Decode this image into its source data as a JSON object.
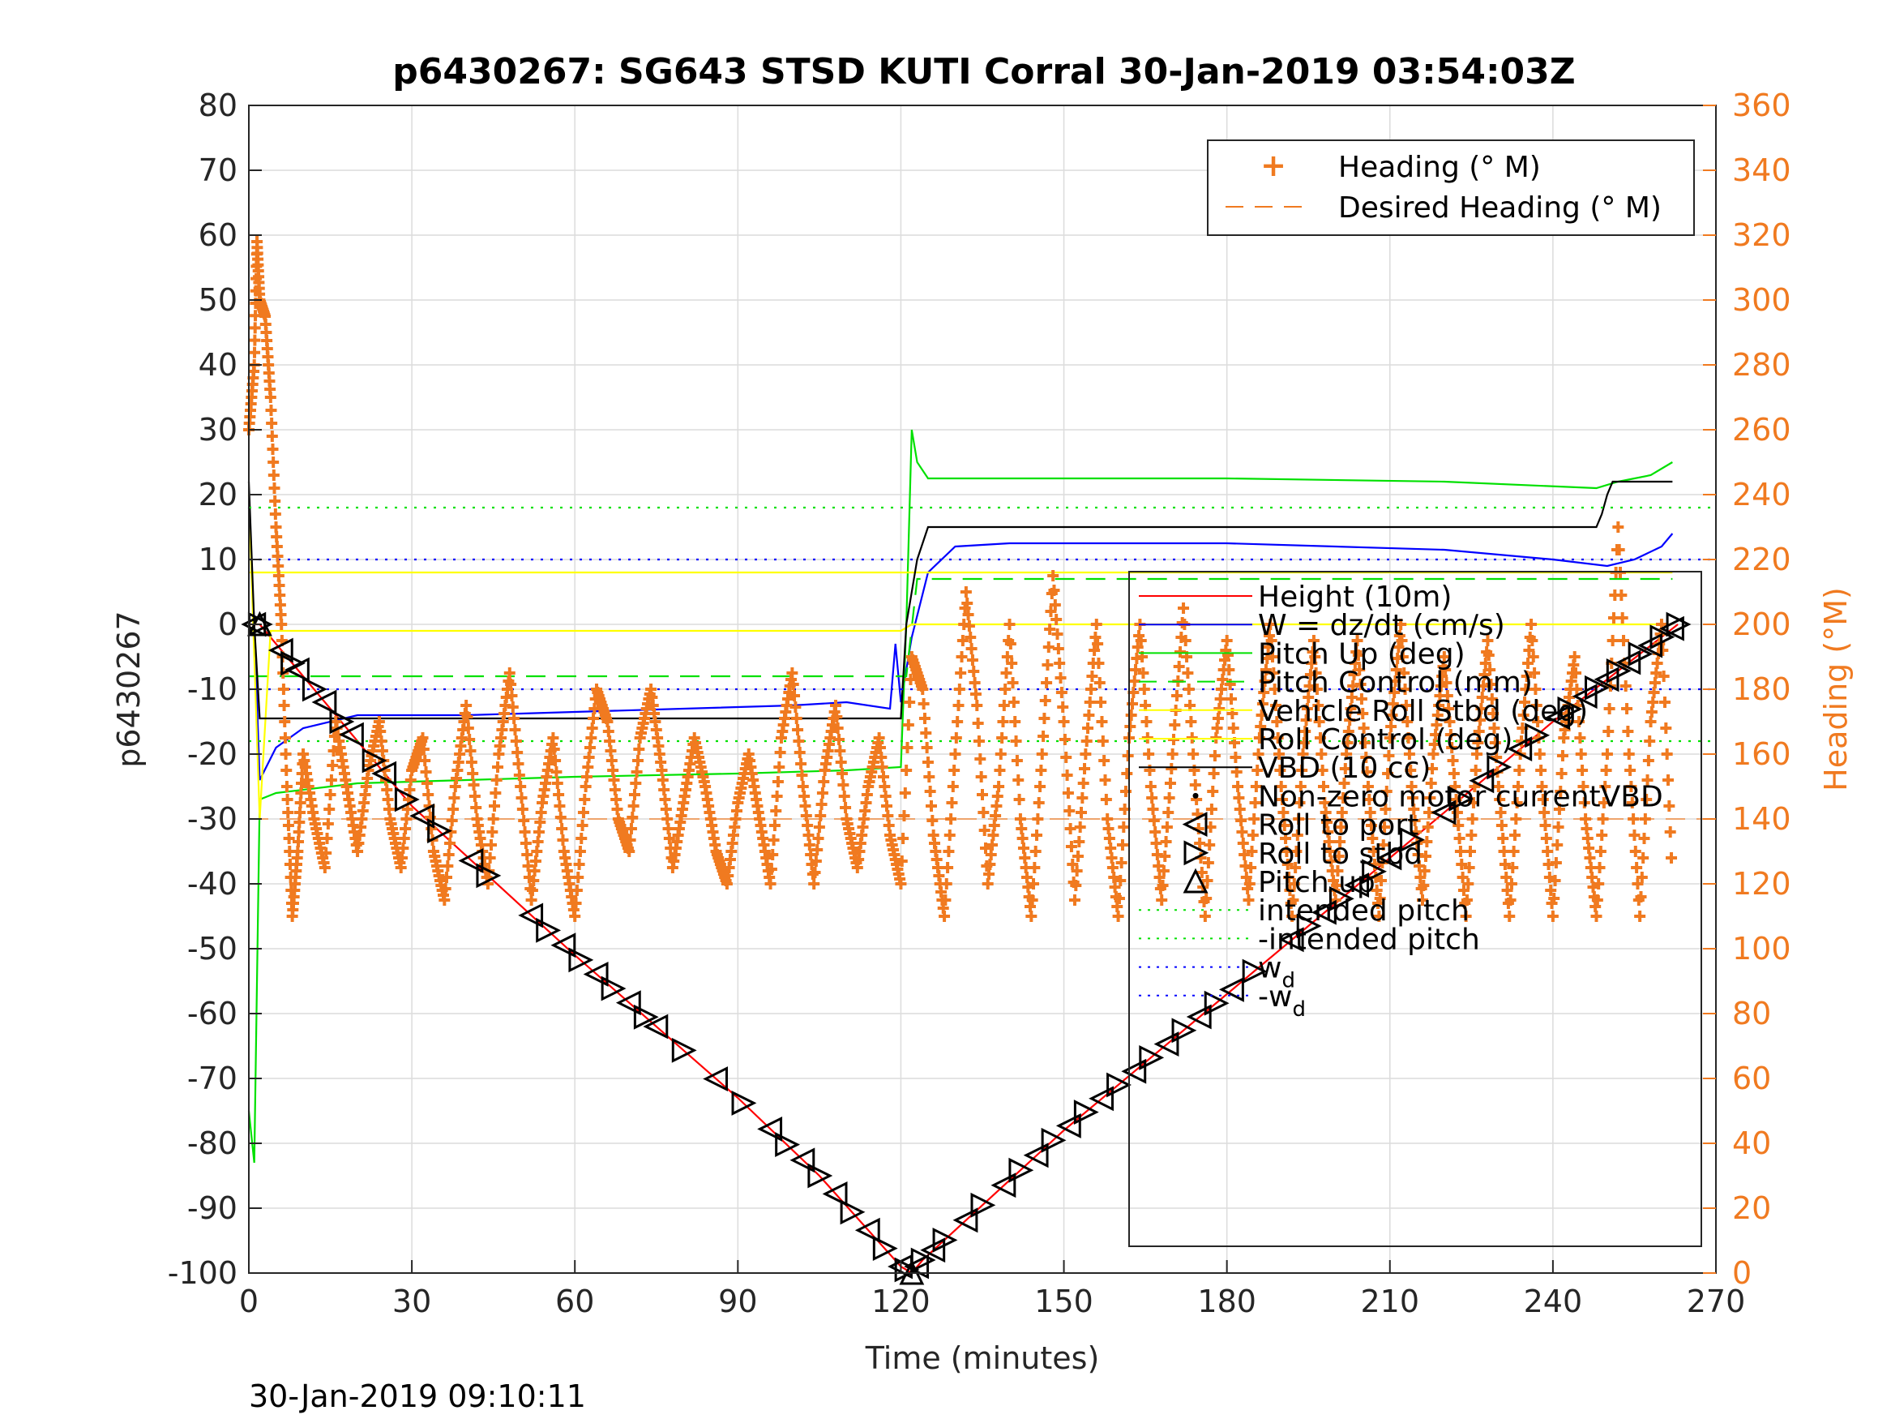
{
  "chart_data": {
    "type": "line",
    "title": "p6430267: SG643 STSD KUTI Corral 30-Jan-2019 03:54:03Z",
    "xlabel": "Time (minutes)",
    "ylabel_left": "p6430267",
    "ylabel_right": "Heading (°M)",
    "xlim": [
      0,
      270
    ],
    "ylim_left": [
      -100,
      80
    ],
    "ylim_right": [
      0,
      360
    ],
    "x_ticks": [
      0,
      30,
      60,
      90,
      120,
      150,
      180,
      210,
      240,
      270
    ],
    "y_ticks_left": [
      80,
      70,
      60,
      50,
      40,
      30,
      20,
      10,
      0,
      -10,
      -20,
      -30,
      -40,
      -50,
      -60,
      -70,
      -80,
      -90,
      -100
    ],
    "y_ticks_right": [
      360,
      340,
      320,
      300,
      280,
      260,
      240,
      220,
      200,
      180,
      160,
      140,
      120,
      100,
      80,
      60,
      40,
      20,
      0
    ],
    "grid": true,
    "timestamp": "30-Jan-2019 09:10:11",
    "legend_top": {
      "placement": "top-right",
      "entries": [
        "Heading (° M)",
        "Desired Heading (° M)"
      ]
    },
    "legend_main": {
      "placement": "right",
      "entries": [
        {
          "label": "Height (10m)",
          "color": "#ff0000",
          "style": "solid"
        },
        {
          "label": "W = dz/dt (cm/s)",
          "color": "#0000ff",
          "style": "solid"
        },
        {
          "label": "Pitch Up (deg)",
          "color": "#00e000",
          "style": "solid"
        },
        {
          "label": "Pitch Control (mm)",
          "color": "#00e000",
          "style": "dashed"
        },
        {
          "label": "Vehicle Roll Stbd (deg)",
          "color": "#ffff00",
          "style": "solid"
        },
        {
          "label": "Roll Control (deg)",
          "color": "#ffff00",
          "style": "solid"
        },
        {
          "label": "VBD (10 cc)",
          "color": "#000000",
          "style": "solid"
        },
        {
          "label": "Non-zero motor currentVBD",
          "color": "#000000",
          "style": "dot"
        },
        {
          "label": "Roll to port",
          "color": "#000000",
          "style": "tri-left"
        },
        {
          "label": "Roll to stbd",
          "color": "#000000",
          "style": "tri-right"
        },
        {
          "label": "Pitch up",
          "color": "#000000",
          "style": "tri-up"
        },
        {
          "label": "intended pitch",
          "color": "#00e000",
          "style": "dotted"
        },
        {
          "label": "-intended pitch",
          "color": "#00e000",
          "style": "dotted"
        },
        {
          "label": "w_d",
          "color": "#0000ff",
          "style": "dotted"
        },
        {
          "label": "-w_d",
          "color": "#0000ff",
          "style": "dotted"
        }
      ]
    },
    "series": [
      {
        "name": "Height (10m)",
        "color": "#ff0000",
        "x": [
          0,
          2,
          30,
          60,
          90,
          105,
          120,
          122,
          124,
          150,
          180,
          210,
          240,
          263
        ],
        "y": [
          0,
          0,
          -28,
          -51,
          -73,
          -85,
          -99,
          -100,
          -98,
          -78,
          -57,
          -36,
          -15,
          0
        ]
      },
      {
        "name": "W = dz/dt (cm/s)",
        "color": "#0000ff",
        "x": [
          0,
          1,
          2,
          5,
          10,
          20,
          40,
          60,
          80,
          100,
          110,
          118,
          119,
          120,
          122,
          125,
          130,
          140,
          160,
          180,
          200,
          220,
          240,
          250,
          255,
          260,
          262
        ],
        "y": [
          18,
          0,
          -24,
          -19,
          -16,
          -14,
          -14,
          -13.5,
          -13,
          -12.5,
          -12,
          -13,
          -3,
          -12,
          -2,
          8,
          12,
          12.5,
          12.5,
          12.5,
          12,
          11.5,
          10,
          9,
          10,
          12,
          14
        ]
      },
      {
        "name": "Pitch Up (deg)",
        "color": "#00e000",
        "x": [
          0,
          1,
          2,
          5,
          20,
          40,
          60,
          90,
          110,
          120,
          121,
          122,
          123,
          125,
          140,
          180,
          220,
          248,
          252,
          258,
          262
        ],
        "y": [
          -75,
          -83,
          -27,
          -26,
          -24.5,
          -24,
          -23.5,
          -23,
          -22.5,
          -22,
          0,
          30,
          25,
          22.5,
          22.5,
          22.5,
          22,
          21,
          22,
          23,
          25
        ]
      },
      {
        "name": "Pitch Control (mm)",
        "color": "#00e000",
        "dashed": true,
        "x": [
          0,
          2,
          121,
          123,
          262
        ],
        "y": [
          -8,
          -8,
          -8,
          7,
          7
        ]
      },
      {
        "name": "Vehicle Roll Stbd (deg)",
        "color": "#ffff00",
        "x": [
          0,
          2,
          4,
          120,
          122,
          262
        ],
        "y": [
          20,
          -30,
          -1,
          -1,
          0,
          0
        ]
      },
      {
        "name": "Roll Control (deg)",
        "color": "#ffff00",
        "x": [
          0,
          2,
          262
        ],
        "y": [
          8,
          8,
          8
        ]
      },
      {
        "name": "VBD (10 cc)",
        "color": "#000000",
        "x": [
          0,
          1,
          2,
          120,
          121,
          123,
          125,
          248,
          249,
          250,
          251,
          262
        ],
        "y": [
          22,
          0,
          -14.5,
          -14.5,
          0,
          10,
          15,
          15,
          17,
          20,
          22,
          22
        ]
      },
      {
        "name": "intended pitch",
        "color": "#00e000",
        "dotted": true,
        "x": [
          0,
          270
        ],
        "y": [
          18,
          18
        ]
      },
      {
        "name": "-intended pitch",
        "color": "#00e000",
        "dotted": true,
        "x": [
          0,
          270
        ],
        "y": [
          -18,
          -18
        ]
      },
      {
        "name": "w_d",
        "color": "#0000ff",
        "dotted": true,
        "x": [
          0,
          270
        ],
        "y": [
          10,
          10
        ]
      },
      {
        "name": "-w_d",
        "color": "#0000ff",
        "dotted": true,
        "x": [
          0,
          270
        ],
        "y": [
          -10,
          -10
        ]
      },
      {
        "name": "Desired Heading (° M)",
        "color": "#f07a20",
        "axis": "right",
        "x": [
          0,
          270
        ],
        "y": [
          140,
          140
        ]
      }
    ],
    "markers": {
      "roll_port_x": [
        1,
        6,
        9,
        14,
        19,
        25,
        32,
        41,
        52,
        58,
        64,
        70,
        75,
        86,
        96,
        102,
        108,
        114,
        120,
        123,
        126,
        132,
        139,
        145,
        151,
        157,
        163,
        169,
        175,
        181,
        192,
        198,
        204,
        210,
        220,
        227,
        234,
        241,
        246,
        250,
        254,
        258,
        262
      ],
      "roll_stbd_x": [
        2,
        8,
        12,
        17,
        23,
        29,
        35,
        44,
        55,
        61,
        67,
        73,
        80,
        91,
        99,
        105,
        111,
        117,
        121,
        124,
        128,
        135,
        142,
        148,
        154,
        160,
        166,
        172,
        178,
        185,
        195,
        201,
        207,
        214,
        223,
        230,
        237,
        243,
        248,
        252,
        256,
        260,
        263
      ],
      "pitch_up_x": [
        2,
        122
      ]
    },
    "heading_series": {
      "name": "Heading (° M)",
      "color": "#f07a20",
      "axis": "right",
      "x": [
        0,
        1,
        1.5,
        2,
        3,
        4,
        5,
        6,
        7,
        8,
        9,
        10,
        12,
        14,
        16,
        18,
        20,
        22,
        24,
        26,
        28,
        30,
        32,
        34,
        36,
        38,
        40,
        42,
        44,
        46,
        48,
        50,
        52,
        54,
        56,
        58,
        60,
        62,
        64,
        66,
        68,
        70,
        72,
        74,
        76,
        78,
        80,
        82,
        84,
        86,
        88,
        90,
        92,
        94,
        96,
        98,
        100,
        102,
        104,
        106,
        108,
        110,
        112,
        114,
        116,
        118,
        120,
        122,
        124,
        126,
        128,
        130,
        132,
        134,
        136,
        138,
        140,
        142,
        144,
        146,
        148,
        150,
        152,
        154,
        156,
        158,
        160,
        162,
        164,
        166,
        168,
        170,
        172,
        174,
        176,
        178,
        180,
        182,
        184,
        186,
        188,
        190,
        192,
        194,
        196,
        198,
        200,
        202,
        204,
        206,
        208,
        210,
        212,
        214,
        216,
        218,
        220,
        222,
        224,
        226,
        228,
        230,
        232,
        234,
        236,
        238,
        240,
        242,
        244,
        246,
        248,
        250,
        252,
        254,
        256,
        258,
        260,
        262
      ],
      "y": [
        260,
        280,
        318,
        300,
        295,
        270,
        230,
        200,
        150,
        110,
        130,
        160,
        140,
        125,
        170,
        150,
        130,
        155,
        170,
        140,
        125,
        155,
        165,
        130,
        115,
        150,
        175,
        140,
        120,
        160,
        185,
        150,
        115,
        145,
        165,
        130,
        110,
        150,
        180,
        170,
        140,
        130,
        165,
        180,
        155,
        125,
        145,
        165,
        150,
        130,
        120,
        145,
        160,
        140,
        120,
        165,
        185,
        150,
        120,
        155,
        175,
        140,
        125,
        150,
        165,
        135,
        120,
        190,
        180,
        135,
        110,
        160,
        210,
        175,
        120,
        150,
        200,
        140,
        110,
        160,
        215,
        170,
        115,
        160,
        200,
        140,
        110,
        165,
        200,
        150,
        115,
        160,
        205,
        155,
        110,
        165,
        195,
        150,
        115,
        165,
        200,
        150,
        110,
        160,
        195,
        145,
        115,
        160,
        195,
        150,
        110,
        165,
        200,
        150,
        115,
        160,
        190,
        150,
        110,
        160,
        195,
        150,
        110,
        160,
        200,
        150,
        110,
        165,
        190,
        140,
        110,
        160,
        230,
        160,
        110,
        170,
        200,
        120
      ]
    }
  }
}
